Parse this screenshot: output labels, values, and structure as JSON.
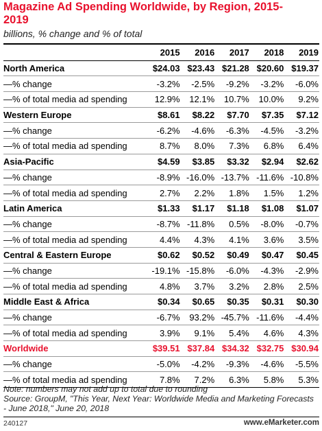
{
  "chart_data": {
    "type": "table",
    "title": "Magazine Ad Spending Worldwide, by Region, 2015-2019",
    "subtitle": "billions, % change and % of total",
    "columns": [
      "2015",
      "2016",
      "2017",
      "2018",
      "2019"
    ],
    "rows": [
      {
        "label": "North America",
        "kind": "region",
        "values": [
          "$24.03",
          "$23.43",
          "$21.28",
          "$20.60",
          "$19.37"
        ]
      },
      {
        "label": "—% change",
        "kind": "sub",
        "values": [
          "-3.2%",
          "-2.5%",
          "-9.2%",
          "-3.2%",
          "-6.0%"
        ]
      },
      {
        "label": "—% of total media ad spending",
        "kind": "sub",
        "values": [
          "12.9%",
          "12.1%",
          "10.7%",
          "10.0%",
          "9.2%"
        ]
      },
      {
        "label": "Western Europe",
        "kind": "region",
        "values": [
          "$8.61",
          "$8.22",
          "$7.70",
          "$7.35",
          "$7.12"
        ]
      },
      {
        "label": "—% change",
        "kind": "sub",
        "values": [
          "-6.2%",
          "-4.6%",
          "-6.3%",
          "-4.5%",
          "-3.2%"
        ]
      },
      {
        "label": "—% of total media ad spending",
        "kind": "sub",
        "values": [
          "8.7%",
          "8.0%",
          "7.3%",
          "6.8%",
          "6.4%"
        ]
      },
      {
        "label": "Asia-Pacific",
        "kind": "region",
        "values": [
          "$4.59",
          "$3.85",
          "$3.32",
          "$2.94",
          "$2.62"
        ]
      },
      {
        "label": "—% change",
        "kind": "sub",
        "values": [
          "-8.9%",
          "-16.0%",
          "-13.7%",
          "-11.6%",
          "-10.8%"
        ]
      },
      {
        "label": "—% of total media ad spending",
        "kind": "sub",
        "values": [
          "2.7%",
          "2.2%",
          "1.8%",
          "1.5%",
          "1.2%"
        ]
      },
      {
        "label": "Latin America",
        "kind": "region",
        "values": [
          "$1.33",
          "$1.17",
          "$1.18",
          "$1.08",
          "$1.07"
        ]
      },
      {
        "label": "—% change",
        "kind": "sub",
        "values": [
          "-8.7%",
          "-11.8%",
          "0.5%",
          "-8.0%",
          "-0.7%"
        ]
      },
      {
        "label": "—% of total media ad spending",
        "kind": "sub",
        "values": [
          "4.4%",
          "4.3%",
          "4.1%",
          "3.6%",
          "3.5%"
        ]
      },
      {
        "label": "Central & Eastern Europe",
        "kind": "region",
        "values": [
          "$0.62",
          "$0.52",
          "$0.49",
          "$0.47",
          "$0.45"
        ]
      },
      {
        "label": "—% change",
        "kind": "sub",
        "values": [
          "-19.1%",
          "-15.8%",
          "-6.0%",
          "-4.3%",
          "-2.9%"
        ]
      },
      {
        "label": "—% of total media ad spending",
        "kind": "sub",
        "values": [
          "4.8%",
          "3.7%",
          "3.2%",
          "2.8%",
          "2.5%"
        ]
      },
      {
        "label": "Middle East & Africa",
        "kind": "region",
        "values": [
          "$0.34",
          "$0.65",
          "$0.35",
          "$0.31",
          "$0.30"
        ]
      },
      {
        "label": "—% change",
        "kind": "sub",
        "values": [
          "-6.7%",
          "93.2%",
          "-45.7%",
          "-11.6%",
          "-4.4%"
        ]
      },
      {
        "label": "—% of total media ad spending",
        "kind": "sub",
        "values": [
          "3.9%",
          "9.1%",
          "5.4%",
          "4.6%",
          "4.3%"
        ]
      },
      {
        "label": "Worldwide",
        "kind": "total",
        "values": [
          "$39.51",
          "$37.84",
          "$34.32",
          "$32.75",
          "$30.94"
        ]
      },
      {
        "label": "—% change",
        "kind": "sub",
        "values": [
          "-5.0%",
          "-4.2%",
          "-9.3%",
          "-4.6%",
          "-5.5%"
        ]
      },
      {
        "label": "—% of total media ad spending",
        "kind": "sub",
        "values": [
          "7.8%",
          "7.2%",
          "6.3%",
          "5.8%",
          "5.3%"
        ]
      }
    ],
    "note": "Note: numbers may not add up to total due to rounding",
    "source": "Source: GroupM, \"This Year, Next Year: Worldwide Media and Marketing Forecasts - June 2018,\" June 20, 2018",
    "chart_id": "240127",
    "brand": "www.eMarketer.com"
  },
  "colors": {
    "accent": "#e8112d",
    "text": "#000000",
    "row_rule": "#9a9a9a"
  }
}
